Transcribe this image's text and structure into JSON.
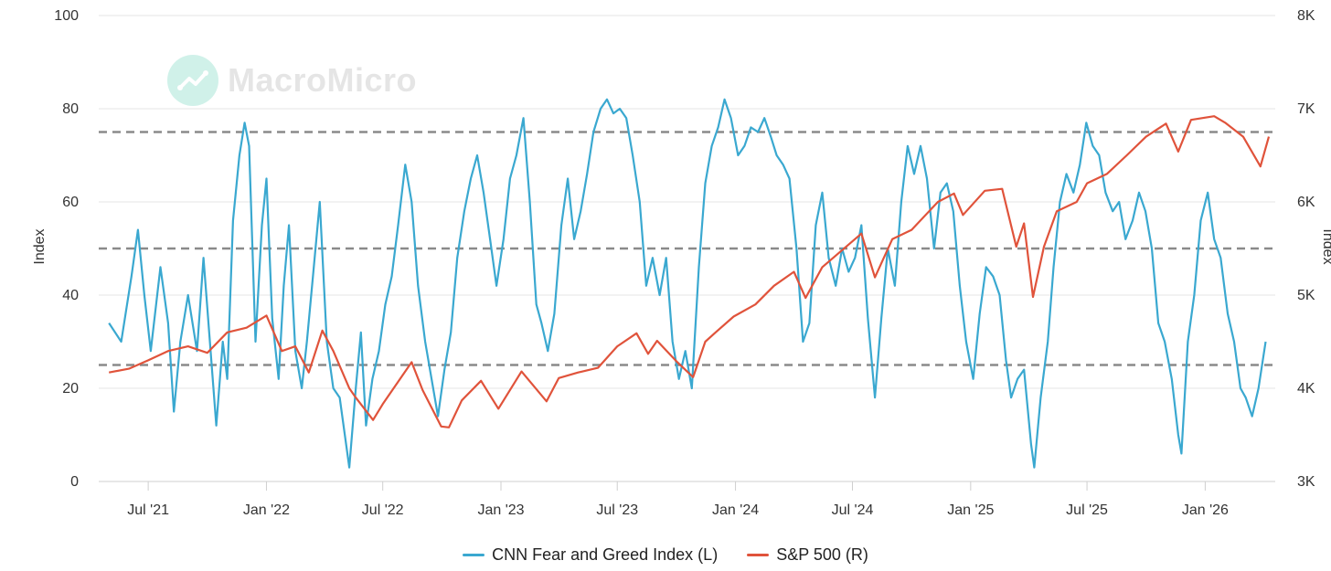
{
  "watermark": {
    "text": "MacroMicro",
    "icon": "macromicro-logo-icon"
  },
  "legend": {
    "fg_label": "CNN Fear and Greed Index (L)",
    "sp_label": "S&P 500 (R)"
  },
  "colors": {
    "fear_greed": "#3AA8D0",
    "sp500": "#E0533B",
    "grid": "#e6e6e6",
    "threshold": "#8a8a8a"
  },
  "chart_data": {
    "type": "line",
    "x_axis": {
      "type": "date",
      "range": [
        "2021-04-15",
        "2026-04-20"
      ],
      "ticks": [
        {
          "date": "2021-07-01",
          "label": "Jul '21"
        },
        {
          "date": "2022-01-01",
          "label": "Jan '22"
        },
        {
          "date": "2022-07-01",
          "label": "Jul '22"
        },
        {
          "date": "2023-01-01",
          "label": "Jan '23"
        },
        {
          "date": "2023-07-01",
          "label": "Jul '23"
        },
        {
          "date": "2024-01-01",
          "label": "Jan '24"
        },
        {
          "date": "2024-07-01",
          "label": "Jul '24"
        },
        {
          "date": "2025-01-01",
          "label": "Jan '25"
        },
        {
          "date": "2025-07-01",
          "label": "Jul '25"
        },
        {
          "date": "2026-01-01",
          "label": "Jan '26"
        }
      ]
    },
    "y_left": {
      "label": "Index",
      "range": [
        0,
        100
      ],
      "ticks": [
        "0",
        "20",
        "40",
        "60",
        "80",
        "100"
      ]
    },
    "y_right": {
      "label": "Index",
      "range": [
        3000,
        8000
      ],
      "ticks": [
        "3K",
        "4K",
        "5K",
        "6K",
        "7K",
        "8K"
      ]
    },
    "reference_lines": [
      25,
      50,
      75
    ],
    "grid": true,
    "legend_position": "bottom",
    "series": [
      {
        "name": "CNN Fear and Greed Index (L)",
        "axis": "left",
        "points": [
          [
            "2021-05-01",
            34
          ],
          [
            "2021-05-20",
            30
          ],
          [
            "2021-06-05",
            44
          ],
          [
            "2021-06-15",
            54
          ],
          [
            "2021-06-25",
            40
          ],
          [
            "2021-07-05",
            28
          ],
          [
            "2021-07-20",
            46
          ],
          [
            "2021-08-01",
            34
          ],
          [
            "2021-08-10",
            15
          ],
          [
            "2021-08-20",
            30
          ],
          [
            "2021-09-01",
            40
          ],
          [
            "2021-09-15",
            28
          ],
          [
            "2021-09-25",
            48
          ],
          [
            "2021-10-05",
            30
          ],
          [
            "2021-10-15",
            12
          ],
          [
            "2021-10-25",
            30
          ],
          [
            "2021-11-01",
            22
          ],
          [
            "2021-11-10",
            56
          ],
          [
            "2021-11-20",
            70
          ],
          [
            "2021-11-28",
            77
          ],
          [
            "2021-12-05",
            72
          ],
          [
            "2021-12-15",
            30
          ],
          [
            "2021-12-25",
            55
          ],
          [
            "2022-01-01",
            65
          ],
          [
            "2022-01-10",
            35
          ],
          [
            "2022-01-20",
            22
          ],
          [
            "2022-01-28",
            42
          ],
          [
            "2022-02-05",
            55
          ],
          [
            "2022-02-15",
            28
          ],
          [
            "2022-02-25",
            20
          ],
          [
            "2022-03-05",
            30
          ],
          [
            "2022-03-15",
            45
          ],
          [
            "2022-03-25",
            60
          ],
          [
            "2022-04-05",
            30
          ],
          [
            "2022-04-15",
            20
          ],
          [
            "2022-04-25",
            18
          ],
          [
            "2022-05-05",
            8
          ],
          [
            "2022-05-10",
            3
          ],
          [
            "2022-05-20",
            20
          ],
          [
            "2022-05-28",
            32
          ],
          [
            "2022-06-05",
            12
          ],
          [
            "2022-06-15",
            22
          ],
          [
            "2022-06-25",
            28
          ],
          [
            "2022-07-05",
            38
          ],
          [
            "2022-07-15",
            44
          ],
          [
            "2022-07-25",
            55
          ],
          [
            "2022-08-05",
            68
          ],
          [
            "2022-08-15",
            60
          ],
          [
            "2022-08-25",
            42
          ],
          [
            "2022-09-05",
            30
          ],
          [
            "2022-09-15",
            22
          ],
          [
            "2022-09-25",
            14
          ],
          [
            "2022-10-05",
            24
          ],
          [
            "2022-10-15",
            32
          ],
          [
            "2022-10-25",
            48
          ],
          [
            "2022-11-05",
            58
          ],
          [
            "2022-11-15",
            65
          ],
          [
            "2022-11-25",
            70
          ],
          [
            "2022-12-05",
            62
          ],
          [
            "2022-12-15",
            52
          ],
          [
            "2022-12-25",
            42
          ],
          [
            "2023-01-05",
            52
          ],
          [
            "2023-01-15",
            65
          ],
          [
            "2023-01-25",
            70
          ],
          [
            "2023-02-05",
            78
          ],
          [
            "2023-02-15",
            60
          ],
          [
            "2023-02-25",
            38
          ],
          [
            "2023-03-05",
            34
          ],
          [
            "2023-03-15",
            28
          ],
          [
            "2023-03-25",
            36
          ],
          [
            "2023-04-05",
            55
          ],
          [
            "2023-04-15",
            65
          ],
          [
            "2023-04-25",
            52
          ],
          [
            "2023-05-05",
            58
          ],
          [
            "2023-05-15",
            66
          ],
          [
            "2023-05-25",
            75
          ],
          [
            "2023-06-05",
            80
          ],
          [
            "2023-06-15",
            82
          ],
          [
            "2023-06-25",
            79
          ],
          [
            "2023-07-05",
            80
          ],
          [
            "2023-07-15",
            78
          ],
          [
            "2023-07-25",
            70
          ],
          [
            "2023-08-05",
            60
          ],
          [
            "2023-08-15",
            42
          ],
          [
            "2023-08-25",
            48
          ],
          [
            "2023-09-05",
            40
          ],
          [
            "2023-09-15",
            48
          ],
          [
            "2023-09-25",
            30
          ],
          [
            "2023-10-05",
            22
          ],
          [
            "2023-10-15",
            28
          ],
          [
            "2023-10-25",
            20
          ],
          [
            "2023-11-05",
            46
          ],
          [
            "2023-11-15",
            64
          ],
          [
            "2023-11-25",
            72
          ],
          [
            "2023-12-05",
            76
          ],
          [
            "2023-12-15",
            82
          ],
          [
            "2023-12-25",
            78
          ],
          [
            "2024-01-05",
            70
          ],
          [
            "2024-01-15",
            72
          ],
          [
            "2024-01-25",
            76
          ],
          [
            "2024-02-05",
            75
          ],
          [
            "2024-02-15",
            78
          ],
          [
            "2024-02-25",
            74
          ],
          [
            "2024-03-05",
            70
          ],
          [
            "2024-03-15",
            68
          ],
          [
            "2024-03-25",
            65
          ],
          [
            "2024-04-05",
            50
          ],
          [
            "2024-04-15",
            30
          ],
          [
            "2024-04-25",
            34
          ],
          [
            "2024-05-05",
            55
          ],
          [
            "2024-05-15",
            62
          ],
          [
            "2024-05-25",
            48
          ],
          [
            "2024-06-05",
            42
          ],
          [
            "2024-06-15",
            50
          ],
          [
            "2024-06-25",
            45
          ],
          [
            "2024-07-05",
            48
          ],
          [
            "2024-07-15",
            55
          ],
          [
            "2024-07-25",
            35
          ],
          [
            "2024-08-05",
            18
          ],
          [
            "2024-08-15",
            35
          ],
          [
            "2024-08-25",
            50
          ],
          [
            "2024-09-05",
            42
          ],
          [
            "2024-09-15",
            60
          ],
          [
            "2024-09-25",
            72
          ],
          [
            "2024-10-05",
            66
          ],
          [
            "2024-10-15",
            72
          ],
          [
            "2024-10-25",
            65
          ],
          [
            "2024-11-05",
            50
          ],
          [
            "2024-11-15",
            62
          ],
          [
            "2024-11-25",
            64
          ],
          [
            "2024-12-05",
            58
          ],
          [
            "2024-12-15",
            42
          ],
          [
            "2024-12-25",
            30
          ],
          [
            "2025-01-05",
            22
          ],
          [
            "2025-01-15",
            36
          ],
          [
            "2025-01-25",
            46
          ],
          [
            "2025-02-05",
            44
          ],
          [
            "2025-02-15",
            40
          ],
          [
            "2025-02-25",
            26
          ],
          [
            "2025-03-05",
            18
          ],
          [
            "2025-03-15",
            22
          ],
          [
            "2025-03-25",
            24
          ],
          [
            "2025-04-05",
            8
          ],
          [
            "2025-04-10",
            3
          ],
          [
            "2025-04-20",
            18
          ],
          [
            "2025-05-01",
            30
          ],
          [
            "2025-05-10",
            46
          ],
          [
            "2025-05-20",
            60
          ],
          [
            "2025-05-30",
            66
          ],
          [
            "2025-06-10",
            62
          ],
          [
            "2025-06-20",
            68
          ],
          [
            "2025-06-30",
            77
          ],
          [
            "2025-07-10",
            72
          ],
          [
            "2025-07-20",
            70
          ],
          [
            "2025-07-30",
            62
          ],
          [
            "2025-08-10",
            58
          ],
          [
            "2025-08-20",
            60
          ],
          [
            "2025-08-30",
            52
          ],
          [
            "2025-09-10",
            56
          ],
          [
            "2025-09-20",
            62
          ],
          [
            "2025-09-30",
            58
          ],
          [
            "2025-10-10",
            50
          ],
          [
            "2025-10-20",
            34
          ],
          [
            "2025-10-30",
            30
          ],
          [
            "2025-11-10",
            22
          ],
          [
            "2025-11-20",
            10
          ],
          [
            "2025-11-25",
            6
          ],
          [
            "2025-12-05",
            30
          ],
          [
            "2025-12-15",
            40
          ],
          [
            "2025-12-25",
            56
          ],
          [
            "2026-01-05",
            62
          ],
          [
            "2026-01-15",
            52
          ],
          [
            "2026-01-25",
            48
          ],
          [
            "2026-02-05",
            36
          ],
          [
            "2026-02-15",
            30
          ],
          [
            "2026-02-25",
            20
          ],
          [
            "2026-03-05",
            18
          ],
          [
            "2026-03-15",
            14
          ],
          [
            "2026-03-25",
            20
          ],
          [
            "2026-04-05",
            30
          ]
        ]
      },
      {
        "name": "S&P 500 (R)",
        "axis": "right",
        "points": [
          [
            "2021-05-01",
            4170
          ],
          [
            "2021-06-01",
            4210
          ],
          [
            "2021-07-01",
            4300
          ],
          [
            "2021-08-01",
            4400
          ],
          [
            "2021-09-01",
            4450
          ],
          [
            "2021-10-01",
            4380
          ],
          [
            "2021-11-01",
            4600
          ],
          [
            "2021-12-01",
            4650
          ],
          [
            "2022-01-01",
            4780
          ],
          [
            "2022-01-25",
            4400
          ],
          [
            "2022-02-15",
            4450
          ],
          [
            "2022-03-08",
            4170
          ],
          [
            "2022-03-29",
            4620
          ],
          [
            "2022-04-15",
            4400
          ],
          [
            "2022-05-10",
            4000
          ],
          [
            "2022-05-20",
            3900
          ],
          [
            "2022-06-16",
            3660
          ],
          [
            "2022-07-01",
            3830
          ],
          [
            "2022-08-15",
            4280
          ],
          [
            "2022-09-01",
            3980
          ],
          [
            "2022-09-30",
            3590
          ],
          [
            "2022-10-12",
            3580
          ],
          [
            "2022-11-01",
            3870
          ],
          [
            "2022-12-01",
            4080
          ],
          [
            "2022-12-28",
            3780
          ],
          [
            "2023-02-02",
            4180
          ],
          [
            "2023-03-13",
            3860
          ],
          [
            "2023-04-01",
            4110
          ],
          [
            "2023-05-01",
            4170
          ],
          [
            "2023-06-01",
            4220
          ],
          [
            "2023-07-01",
            4450
          ],
          [
            "2023-07-31",
            4590
          ],
          [
            "2023-08-18",
            4370
          ],
          [
            "2023-09-01",
            4510
          ],
          [
            "2023-10-01",
            4290
          ],
          [
            "2023-10-27",
            4120
          ],
          [
            "2023-11-15",
            4500
          ],
          [
            "2023-12-01",
            4600
          ],
          [
            "2023-12-29",
            4770
          ],
          [
            "2024-02-01",
            4900
          ],
          [
            "2024-03-01",
            5100
          ],
          [
            "2024-04-01",
            5250
          ],
          [
            "2024-04-19",
            4970
          ],
          [
            "2024-05-15",
            5300
          ],
          [
            "2024-07-15",
            5660
          ],
          [
            "2024-08-05",
            5190
          ],
          [
            "2024-09-01",
            5600
          ],
          [
            "2024-10-01",
            5700
          ],
          [
            "2024-11-11",
            6000
          ],
          [
            "2024-12-06",
            6090
          ],
          [
            "2024-12-20",
            5860
          ],
          [
            "2025-01-23",
            6120
          ],
          [
            "2025-02-19",
            6140
          ],
          [
            "2025-03-13",
            5520
          ],
          [
            "2025-03-25",
            5770
          ],
          [
            "2025-04-08",
            4980
          ],
          [
            "2025-04-25",
            5520
          ],
          [
            "2025-05-15",
            5900
          ],
          [
            "2025-06-15",
            6000
          ],
          [
            "2025-07-01",
            6200
          ],
          [
            "2025-08-01",
            6300
          ],
          [
            "2025-09-01",
            6500
          ],
          [
            "2025-10-01",
            6700
          ],
          [
            "2025-11-01",
            6840
          ],
          [
            "2025-11-20",
            6540
          ],
          [
            "2025-12-10",
            6880
          ],
          [
            "2026-01-15",
            6920
          ],
          [
            "2026-02-01",
            6850
          ],
          [
            "2026-03-01",
            6700
          ],
          [
            "2026-03-28",
            6380
          ],
          [
            "2026-04-10",
            6700
          ]
        ]
      }
    ]
  }
}
